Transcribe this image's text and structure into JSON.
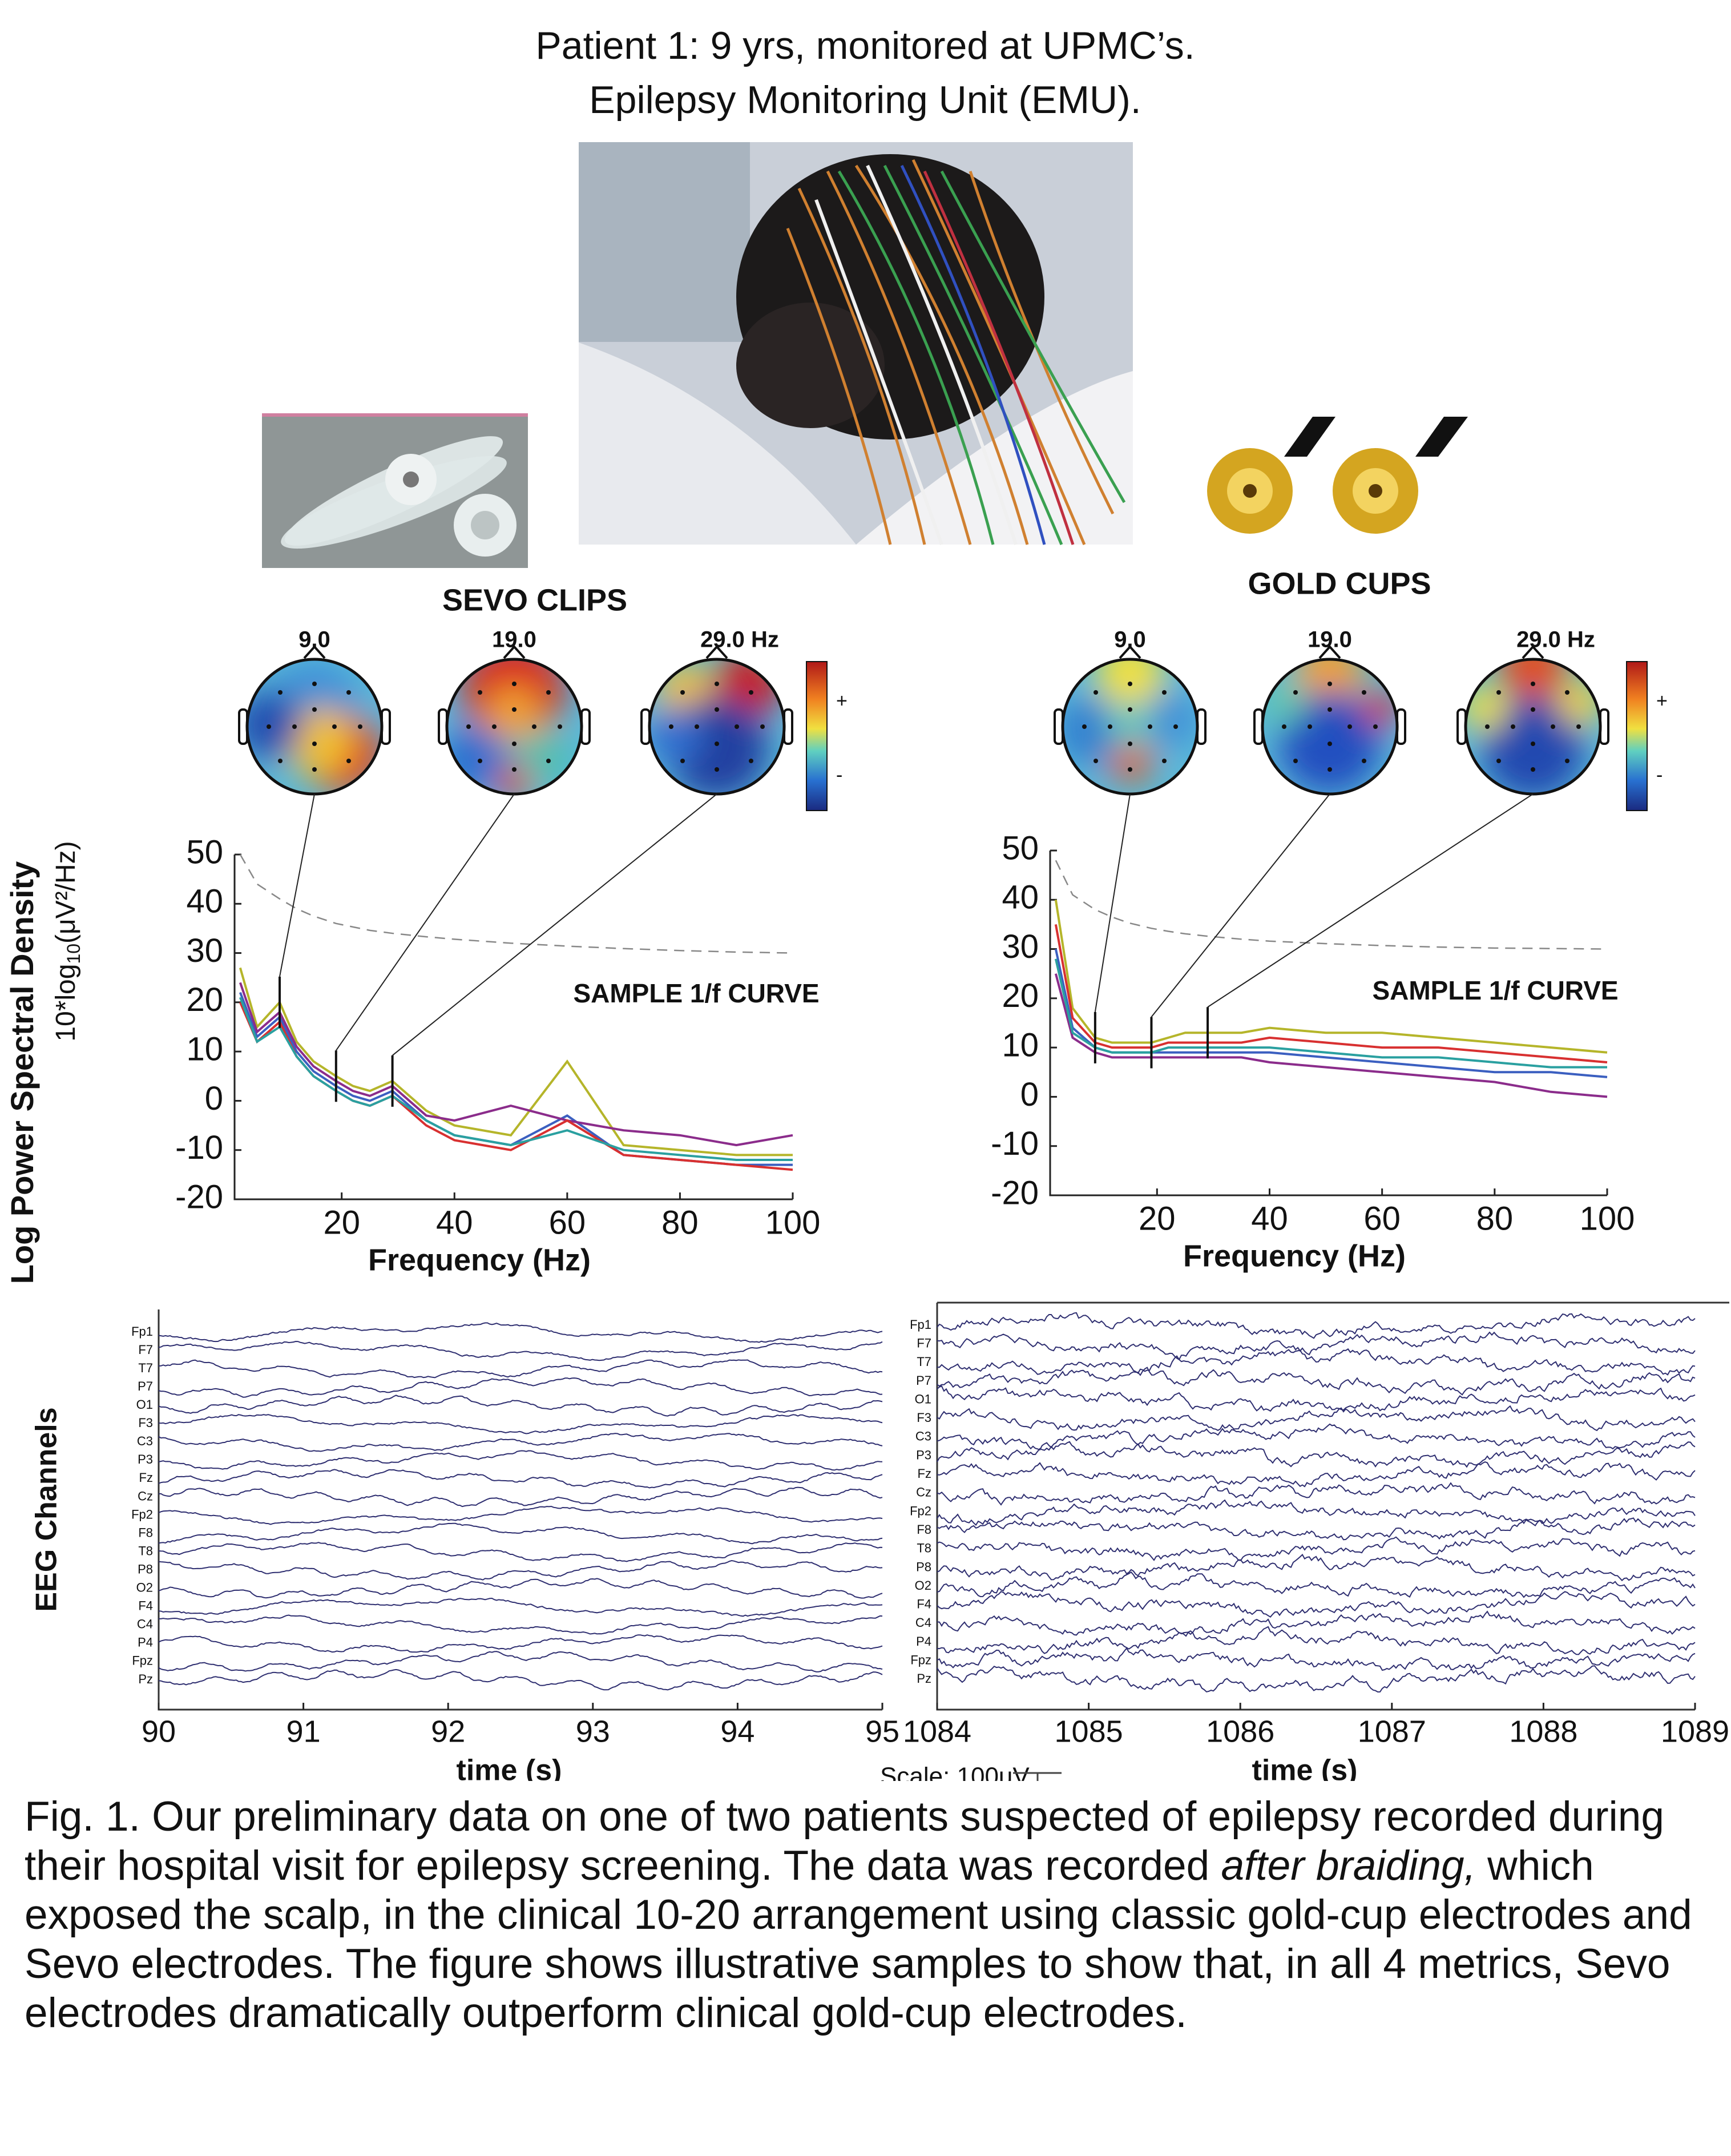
{
  "title": [
    "Patient 1: 9 yrs, monitored at UPMC’s.",
    "Epilepsy Monitoring Unit (EMU)."
  ],
  "panels": [
    {
      "label": "SEVO CLIPS",
      "topo_labels": [
        "9.0",
        "19.0",
        "29.0 Hz"
      ],
      "colorbar": [
        "+",
        "-"
      ]
    },
    {
      "label": "GOLD CUPS",
      "topo_labels": [
        "9.0",
        "19.0",
        "29.0 Hz"
      ],
      "colorbar": [
        "+",
        "-"
      ]
    }
  ],
  "chart_data": [
    {
      "type": "line",
      "ylabel": "Log Power Spectral Density",
      "ylabel_unit": [
        "10*log",
        "10",
        "(μV²/Hz)"
      ],
      "xlabel": "Frequency (Hz)",
      "annotation": "SAMPLE 1/f CURVE",
      "xlim": [
        1,
        100
      ],
      "ylim": [
        -20,
        50
      ],
      "xticks": [
        20,
        40,
        60,
        80,
        100
      ],
      "yticks": [
        -20,
        -10,
        0,
        10,
        20,
        30,
        40,
        50
      ],
      "markers": [
        9,
        19,
        29
      ],
      "x": [
        2,
        5,
        9,
        12,
        15,
        19,
        22,
        25,
        29,
        35,
        40,
        50,
        60,
        70,
        80,
        90,
        100
      ],
      "reference": [
        50,
        44,
        41,
        39,
        37.5,
        36,
        35.3,
        34.6,
        34,
        33.3,
        32.8,
        32,
        31.4,
        30.9,
        30.5,
        30.2,
        30
      ],
      "series": [
        {
          "color": "#b5b52a",
          "values": [
            27,
            15,
            20,
            12,
            8,
            5,
            3,
            2,
            4,
            -2,
            -5,
            -7,
            8,
            -9,
            -10,
            -11,
            -11
          ]
        },
        {
          "color": "#3b5fc0",
          "values": [
            22,
            13,
            17,
            10,
            6,
            3,
            1,
            0,
            2,
            -4,
            -7,
            -9,
            -3,
            -11,
            -12,
            -13,
            -13
          ]
        },
        {
          "color": "#8b2c8b",
          "values": [
            24,
            14,
            18,
            11,
            7,
            4,
            2,
            1,
            3,
            -3,
            -4,
            -1,
            -4,
            -6,
            -7,
            -9,
            -7
          ]
        },
        {
          "color": "#d83030",
          "values": [
            20,
            12,
            16,
            9,
            5,
            2,
            0,
            -1,
            1,
            -5,
            -8,
            -10,
            -4,
            -11,
            -12,
            -13,
            -14
          ]
        },
        {
          "color": "#2aa0a0",
          "values": [
            21,
            12,
            15,
            9,
            5,
            2,
            0,
            -1,
            1,
            -4,
            -7,
            -9,
            -6,
            -10,
            -11,
            -12,
            -12
          ]
        }
      ]
    },
    {
      "type": "line",
      "xlabel": "Frequency (Hz)",
      "annotation": "SAMPLE 1/f CURVE",
      "xlim": [
        1,
        100
      ],
      "ylim": [
        -20,
        50
      ],
      "xticks": [
        20,
        40,
        60,
        80,
        100
      ],
      "yticks": [
        -20,
        -10,
        0,
        10,
        20,
        30,
        40,
        50
      ],
      "markers": [
        9,
        19,
        29
      ],
      "x": [
        2,
        5,
        9,
        12,
        15,
        19,
        22,
        25,
        29,
        35,
        40,
        50,
        60,
        70,
        80,
        90,
        100
      ],
      "reference": [
        48,
        41,
        38,
        36.5,
        35.3,
        34.2,
        33.6,
        33.1,
        32.6,
        32,
        31.6,
        31.1,
        30.7,
        30.4,
        30.2,
        30.1,
        30
      ],
      "series": [
        {
          "color": "#b5b52a",
          "values": [
            40,
            18,
            12,
            11,
            11,
            11,
            12,
            13,
            13,
            13,
            14,
            13,
            13,
            12,
            11,
            10,
            9
          ]
        },
        {
          "color": "#3b5fc0",
          "values": [
            30,
            14,
            10,
            9,
            9,
            9,
            9,
            9,
            9,
            9,
            9,
            8,
            7,
            6,
            5,
            5,
            4
          ]
        },
        {
          "color": "#8b2c8b",
          "values": [
            25,
            12,
            9,
            8,
            8,
            8,
            8,
            8,
            8,
            8,
            7,
            6,
            5,
            4,
            3,
            1,
            0
          ]
        },
        {
          "color": "#d83030",
          "values": [
            35,
            16,
            11,
            10,
            10,
            10,
            11,
            11,
            11,
            11,
            12,
            11,
            10,
            10,
            9,
            8,
            7
          ]
        },
        {
          "color": "#2aa0a0",
          "values": [
            28,
            13,
            10,
            9,
            9,
            9,
            10,
            10,
            10,
            10,
            10,
            9,
            8,
            8,
            7,
            6,
            6
          ]
        }
      ]
    },
    {
      "type": "eeg",
      "ylabel": "EEG Channels",
      "xlabel": "time (s)",
      "xlim": [
        90,
        95
      ],
      "xticks": [
        90,
        91,
        92,
        93,
        94,
        95
      ],
      "categories": [
        "Fp1",
        "F7",
        "T7",
        "P7",
        "O1",
        "F3",
        "C3",
        "P3",
        "Fz",
        "Cz",
        "Fp2",
        "F8",
        "T8",
        "P8",
        "O2",
        "F4",
        "C4",
        "P4",
        "Fpz",
        "Pz"
      ]
    },
    {
      "type": "eeg",
      "xlabel": "time (s)",
      "xlim": [
        1084,
        1089
      ],
      "xticks": [
        1084,
        1085,
        1086,
        1087,
        1088,
        1089
      ],
      "categories": [
        "Fp1",
        "F7",
        "T7",
        "P7",
        "O1",
        "F3",
        "C3",
        "P3",
        "Fz",
        "Cz",
        "Fp2",
        "F8",
        "T8",
        "P8",
        "O2",
        "F4",
        "C4",
        "P4",
        "Fpz",
        "Pz"
      ]
    }
  ],
  "scale": "Scale: 100uV",
  "caption": [
    "Fig. 1. Our preliminary data on one of two patients suspected of epilepsy recorded during their hospital visit for epilepsy screening. The data was recorded ",
    "after braiding,",
    " which exposed the scalp, in the clinical 10-20 arrangement using classic gold-cup electrodes and Sevo electrodes. The figure shows illustrative samples to show that, in all 4 metrics, Sevo electrodes dramatically outperform clinical gold-cup electrodes."
  ]
}
